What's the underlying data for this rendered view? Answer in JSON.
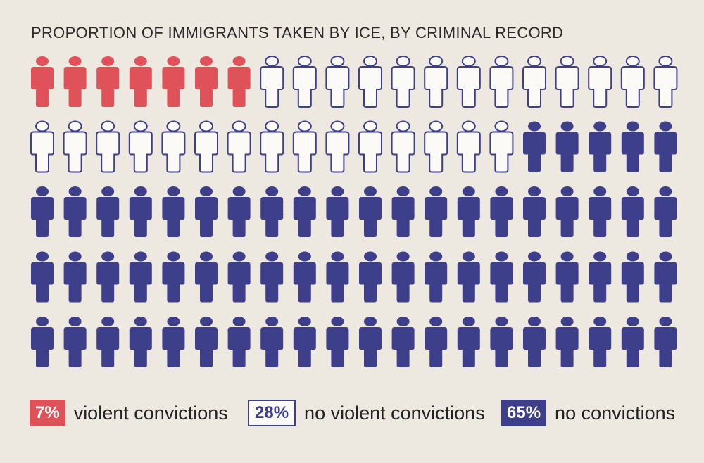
{
  "chart_data": {
    "type": "pictograph",
    "title": "PROPORTION OF IMMIGRANTS TAKEN BY ICE, BY CRIMINAL RECORD",
    "rows": 5,
    "columns": 20,
    "total_icons": 100,
    "categories": [
      {
        "label": "violent convictions",
        "percent_label": "7%",
        "value": 7,
        "color": "#e0525a",
        "style": "filled"
      },
      {
        "label": "no violent convictions",
        "percent_label": "28%",
        "value": 28,
        "color": "#3e3f8a",
        "style": "outline"
      },
      {
        "label": "no convictions",
        "percent_label": "65%",
        "value": 65,
        "color": "#3e3f8a",
        "style": "filled"
      }
    ],
    "icon": "person-icon"
  }
}
